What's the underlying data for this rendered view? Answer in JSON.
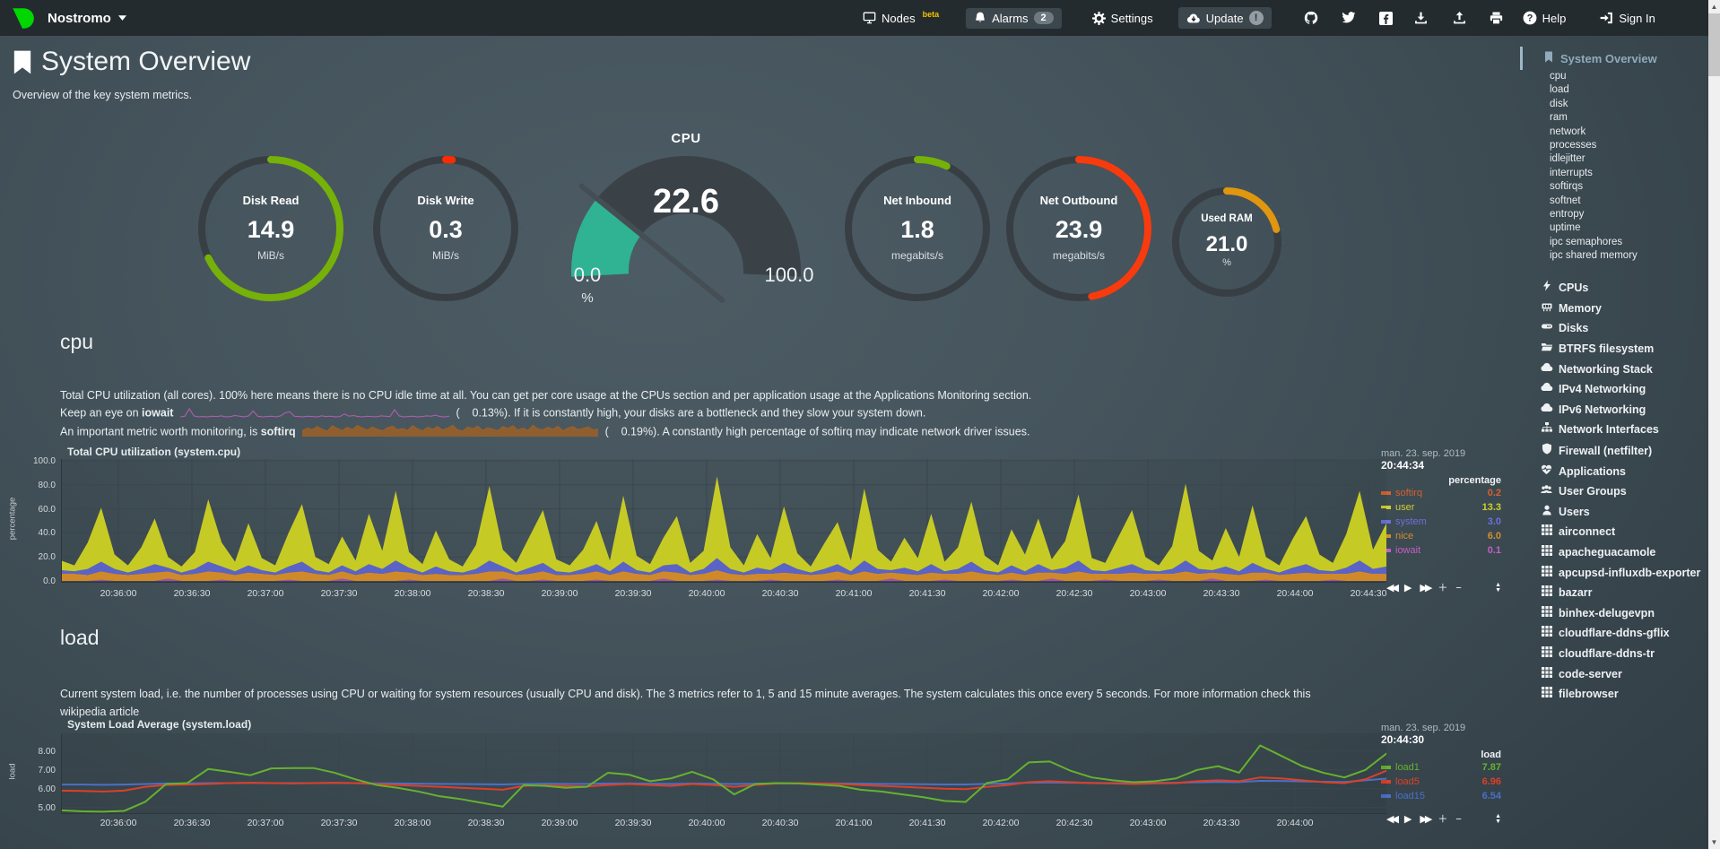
{
  "navbar": {
    "brand": "Nostromo",
    "nodes_label": "Nodes",
    "nodes_beta": "beta",
    "alarms_label": "Alarms",
    "alarms_count": "2",
    "settings_label": "Settings",
    "update_label": "Update",
    "update_badge": "!",
    "help_label": "Help",
    "signin_label": "Sign In",
    "icon_buttons": [
      "github",
      "twitter",
      "facebook",
      "download",
      "upload",
      "print"
    ]
  },
  "header": {
    "title": "System Overview",
    "subtitle": "Overview of the key system metrics."
  },
  "gauges": [
    {
      "label": "Disk Read",
      "value": "14.9",
      "unit": "MiB/s",
      "pct": 0.68,
      "color": "#76b10a"
    },
    {
      "label": "Disk Write",
      "value": "0.3",
      "unit": "MiB/s",
      "pct": 0.015,
      "color": "#ff2b00"
    },
    {
      "label": "Net Inbound",
      "value": "1.8",
      "unit": "megabits/s",
      "pct": 0.07,
      "color": "#76b10a"
    },
    {
      "label": "Net Outbound",
      "value": "23.9",
      "unit": "megabits/s",
      "pct": 0.47,
      "color": "#f83b0e"
    },
    {
      "label": "Used RAM",
      "value": "21.0",
      "unit": "%",
      "pct": 0.21,
      "color": "#e0960f"
    }
  ],
  "cpu_gauge": {
    "title": "CPU",
    "value": "22.6",
    "min": "0.0",
    "max": "100.0",
    "unit": "%",
    "pct": 0.226,
    "fill": "#2fb393"
  },
  "cpu_section": {
    "heading": "cpu",
    "desc1": "Total CPU utilization (all cores). 100% here means there is no CPU idle time at all. You can get per core usage at the CPUs section and per application usage at the Applications Monitoring section.",
    "desc2_pre": "Keep an eye on ",
    "desc2_bold": "iowait",
    "desc2_val": "(    0.13%).",
    "desc2_post": " If it is constantly high, your disks are a bottleneck and they slow your system down.",
    "desc3_pre": "An important metric worth monitoring, is ",
    "desc3_bold": "softirq",
    "desc3_val": "(    0.19%).",
    "desc3_post": " A constantly high percentage of softirq may indicate network driver issues.",
    "chart_title": "Total CPU utilization (system.cpu)",
    "date": "man. 23. sep. 2019",
    "time": "20:44:34",
    "unit_label": "percentage"
  },
  "load_section": {
    "heading": "load",
    "desc1": "Current system load, i.e. the number of processes using CPU or waiting for system resources (usually CPU and disk). The 3 metrics refer to 1, 5 and 15 minute averages. The system calculates this once every 5 seconds. For more information check this",
    "desc_link": "wikipedia article",
    "chart_title": "System Load Average (system.load)",
    "date": "man. 23. sep. 2019",
    "time": "20:44:30",
    "unit_label": "load"
  },
  "chart_toolbar": [
    "rewind",
    "play",
    "fast-forward",
    "zoom-in",
    "zoom-out",
    "resize"
  ],
  "sidebar": {
    "active": "System Overview",
    "sub_items": [
      "cpu",
      "load",
      "disk",
      "ram",
      "network",
      "processes",
      "idlejitter",
      "interrupts",
      "softirqs",
      "softnet",
      "entropy",
      "uptime",
      "ipc semaphores",
      "ipc shared memory"
    ],
    "sections": [
      {
        "icon": "bolt",
        "label": "CPUs"
      },
      {
        "icon": "memory",
        "label": "Memory"
      },
      {
        "icon": "disk",
        "label": "Disks"
      },
      {
        "icon": "folder",
        "label": "BTRFS filesystem"
      },
      {
        "icon": "cloud",
        "label": "Networking Stack"
      },
      {
        "icon": "cloud",
        "label": "IPv4 Networking"
      },
      {
        "icon": "cloud",
        "label": "IPv6 Networking"
      },
      {
        "icon": "sitemap",
        "label": "Network Interfaces"
      },
      {
        "icon": "shield",
        "label": "Firewall (netfilter)"
      },
      {
        "icon": "heartbeat",
        "label": "Applications"
      },
      {
        "icon": "users",
        "label": "User Groups"
      },
      {
        "icon": "user",
        "label": "Users"
      },
      {
        "icon": "grid",
        "label": "airconnect"
      },
      {
        "icon": "grid",
        "label": "apacheguacamole"
      },
      {
        "icon": "grid",
        "label": "apcupsd-influxdb-exporter"
      },
      {
        "icon": "grid",
        "label": "bazarr"
      },
      {
        "icon": "grid",
        "label": "binhex-delugevpn"
      },
      {
        "icon": "grid",
        "label": "cloudflare-ddns-gflix"
      },
      {
        "icon": "grid",
        "label": "cloudflare-ddns-tr"
      },
      {
        "icon": "grid",
        "label": "code-server"
      },
      {
        "icon": "grid",
        "label": "filebrowser"
      }
    ]
  },
  "chart_data": [
    {
      "id": "cpu",
      "type": "area",
      "title": "Total CPU utilization (system.cpu)",
      "ylabel": "percentage",
      "ylim": [
        0,
        100
      ],
      "ytick_labels": [
        "100.0",
        "80.0",
        "60.0",
        "40.0",
        "20.0",
        "0.0"
      ],
      "ytick_values": [
        100,
        80,
        60,
        40,
        20,
        0
      ],
      "x_labels": [
        "20:36:00",
        "20:36:30",
        "20:37:00",
        "20:37:30",
        "20:38:00",
        "20:38:30",
        "20:39:00",
        "20:39:30",
        "20:40:00",
        "20:40:30",
        "20:41:00",
        "20:41:30",
        "20:42:00",
        "20:42:30",
        "20:43:00",
        "20:43:30",
        "20:44:00",
        "20:44:30"
      ],
      "series": [
        {
          "name": "iowait",
          "color": "#a24fb4",
          "values": [
            0,
            0,
            0,
            1,
            0,
            0,
            0,
            0,
            2,
            0,
            0,
            0,
            1,
            0,
            0,
            0,
            0,
            1,
            0,
            0,
            0,
            2,
            0,
            0,
            0,
            0,
            1,
            0,
            0,
            0,
            0,
            0,
            0,
            2,
            0,
            0,
            1,
            0,
            0,
            0,
            1,
            0,
            0,
            0,
            0,
            2,
            0,
            0,
            0,
            1,
            0,
            0,
            0,
            1,
            0,
            0,
            0,
            0,
            1,
            0,
            0,
            0,
            2,
            0,
            0,
            0,
            1,
            0,
            0,
            0,
            0,
            1,
            0,
            0,
            2,
            0,
            0,
            0,
            1,
            0,
            0,
            0,
            1,
            0,
            0,
            0,
            2,
            0,
            0,
            0,
            1,
            0,
            0,
            0,
            0,
            1,
            0,
            0,
            0,
            0
          ]
        },
        {
          "name": "nice",
          "color": "#d0892a",
          "values": [
            6,
            6,
            5,
            7,
            6,
            5,
            6,
            7,
            6,
            5,
            6,
            8,
            6,
            5,
            7,
            6,
            5,
            6,
            8,
            6,
            5,
            6,
            5,
            7,
            6,
            8,
            6,
            5,
            6,
            5,
            5,
            6,
            8,
            6,
            5,
            6,
            7,
            5,
            5,
            6,
            7,
            5,
            8,
            6,
            5,
            6,
            7,
            5,
            6,
            8,
            6,
            5,
            6,
            5,
            7,
            6,
            5,
            6,
            7,
            5,
            8,
            6,
            5,
            6,
            5,
            7,
            5,
            6,
            8,
            6,
            5,
            6,
            5,
            7,
            5,
            6,
            8,
            6,
            5,
            6,
            7,
            6,
            5,
            6,
            8,
            6,
            5,
            6,
            5,
            7,
            6,
            5,
            6,
            7,
            6,
            5,
            6,
            8,
            6,
            6
          ]
        },
        {
          "name": "system",
          "color": "#5a63c8",
          "values": [
            3,
            2,
            5,
            8,
            4,
            2,
            4,
            7,
            3,
            2,
            4,
            8,
            5,
            3,
            6,
            3,
            2,
            5,
            8,
            3,
            2,
            5,
            3,
            7,
            4,
            9,
            4,
            2,
            6,
            3,
            2,
            4,
            9,
            4,
            2,
            5,
            7,
            3,
            2,
            4,
            6,
            3,
            8,
            3,
            2,
            5,
            7,
            2,
            4,
            10,
            4,
            2,
            5,
            3,
            8,
            4,
            2,
            4,
            6,
            3,
            9,
            4,
            2,
            5,
            3,
            7,
            2,
            4,
            8,
            3,
            2,
            6,
            3,
            7,
            2,
            5,
            9,
            3,
            2,
            5,
            7,
            3,
            2,
            4,
            9,
            4,
            2,
            6,
            3,
            8,
            3,
            2,
            5,
            7,
            3,
            2,
            5,
            9,
            4,
            6
          ]
        },
        {
          "name": "user",
          "color": "#c6ca25",
          "values": [
            8,
            5,
            22,
            45,
            12,
            6,
            18,
            38,
            9,
            5,
            14,
            52,
            20,
            8,
            35,
            10,
            6,
            28,
            48,
            11,
            7,
            24,
            9,
            42,
            15,
            58,
            13,
            7,
            30,
            10,
            5,
            20,
            62,
            14,
            8,
            26,
            44,
            10,
            6,
            16,
            36,
            9,
            55,
            12,
            7,
            23,
            40,
            8,
            15,
            68,
            18,
            6,
            28,
            10,
            47,
            13,
            5,
            21,
            35,
            9,
            60,
            16,
            7,
            25,
            11,
            42,
            8,
            18,
            50,
            12,
            6,
            30,
            14,
            38,
            9,
            22,
            55,
            10,
            7,
            26,
            45,
            11,
            5,
            19,
            64,
            15,
            8,
            32,
            12,
            48,
            10,
            6,
            24,
            40,
            13,
            7,
            28,
            58,
            16,
            36
          ]
        }
      ],
      "legend": [
        {
          "name": "softirq",
          "value": "0.2",
          "color": "#d4622f"
        },
        {
          "name": "user",
          "value": "13.3",
          "color": "#ccd030"
        },
        {
          "name": "system",
          "value": "3.0",
          "color": "#6b71dd"
        },
        {
          "name": "nice",
          "value": "6.0",
          "color": "#d28f2f"
        },
        {
          "name": "iowait",
          "value": "0.1",
          "color": "#c45fc4"
        }
      ]
    },
    {
      "id": "load",
      "type": "line",
      "title": "System Load Average (system.load)",
      "ylabel": "load",
      "ylim": [
        4.75,
        8.85
      ],
      "ytick_labels": [
        "8.00",
        "7.00",
        "6.00",
        "5.00"
      ],
      "ytick_values": [
        8,
        7,
        6,
        5
      ],
      "x_labels": [
        "20:36:00",
        "20:36:30",
        "20:37:00",
        "20:37:30",
        "20:38:00",
        "20:38:30",
        "20:39:00",
        "20:39:30",
        "20:40:00",
        "20:40:30",
        "20:41:00",
        "20:41:30",
        "20:42:00",
        "20:42:30",
        "20:43:00",
        "20:43:30",
        "20:44:00"
      ],
      "series": [
        {
          "name": "load1",
          "color": "#65b22e",
          "values": [
            4.85,
            4.8,
            4.78,
            4.82,
            5.3,
            6.25,
            6.3,
            7.05,
            6.9,
            6.72,
            7.08,
            7.1,
            7.1,
            6.85,
            6.5,
            6.2,
            6.05,
            5.85,
            5.6,
            5.45,
            5.25,
            5.05,
            6.2,
            6.15,
            6.05,
            6.1,
            6.85,
            6.75,
            6.4,
            6.55,
            6.9,
            6.5,
            5.7,
            6.25,
            6.3,
            6.28,
            6.22,
            6.15,
            5.95,
            5.85,
            5.7,
            5.55,
            5.35,
            5.3,
            6.3,
            6.5,
            7.4,
            7.45,
            6.95,
            6.6,
            6.45,
            6.35,
            6.4,
            6.55,
            7.0,
            7.2,
            6.85,
            8.3,
            7.75,
            7.2,
            6.85,
            6.6,
            7.0,
            7.87
          ]
        },
        {
          "name": "load5",
          "color": "#dd4026",
          "values": [
            5.9,
            5.88,
            5.85,
            5.9,
            6.1,
            6.2,
            6.22,
            6.25,
            6.3,
            6.32,
            6.3,
            6.28,
            6.3,
            6.32,
            6.3,
            6.25,
            6.2,
            6.15,
            6.1,
            6.05,
            6.0,
            5.95,
            6.15,
            6.18,
            6.15,
            6.12,
            6.2,
            6.25,
            6.2,
            6.15,
            6.25,
            6.2,
            6.1,
            6.2,
            6.28,
            6.3,
            6.28,
            6.25,
            6.2,
            6.15,
            6.1,
            6.05,
            6.0,
            5.98,
            6.1,
            6.2,
            6.35,
            6.4,
            6.35,
            6.3,
            6.28,
            6.25,
            6.28,
            6.3,
            6.4,
            6.45,
            6.4,
            6.6,
            6.55,
            6.45,
            6.35,
            6.3,
            6.5,
            6.96
          ]
        },
        {
          "name": "load15",
          "color": "#4a70c8",
          "values": [
            6.22,
            6.22,
            6.21,
            6.22,
            6.25,
            6.28,
            6.28,
            6.3,
            6.3,
            6.31,
            6.3,
            6.3,
            6.3,
            6.31,
            6.3,
            6.29,
            6.28,
            6.27,
            6.26,
            6.25,
            6.24,
            6.23,
            6.26,
            6.27,
            6.26,
            6.26,
            6.28,
            6.28,
            6.27,
            6.26,
            6.28,
            6.27,
            6.25,
            6.27,
            6.28,
            6.29,
            6.28,
            6.28,
            6.27,
            6.26,
            6.25,
            6.24,
            6.23,
            6.23,
            6.26,
            6.28,
            6.32,
            6.33,
            6.32,
            6.31,
            6.3,
            6.3,
            6.31,
            6.32,
            6.34,
            6.36,
            6.35,
            6.42,
            6.41,
            6.39,
            6.37,
            6.36,
            6.45,
            6.54
          ]
        }
      ],
      "legend": [
        {
          "name": "load1",
          "value": "7.87",
          "color": "#65b22e"
        },
        {
          "name": "load5",
          "value": "6.96",
          "color": "#dd4026"
        },
        {
          "name": "load15",
          "value": "6.54",
          "color": "#4a70c8"
        }
      ]
    },
    {
      "id": "iowait-spark",
      "type": "line",
      "color": "#b75cb7",
      "values": [
        0,
        0.2,
        2.5,
        0.3,
        0,
        0.1,
        0,
        0.2,
        0.1,
        0.3,
        0,
        0.1,
        0.4,
        0.2,
        0,
        0.3,
        1.8,
        0.2,
        0,
        0.1,
        0.2,
        0,
        0.3,
        1.2,
        1.6,
        0.2,
        0.1,
        0,
        0.2,
        0.1,
        0,
        0.3,
        0.1,
        0.2,
        0,
        0.1,
        0.9,
        0.2,
        0.4,
        0.1,
        0,
        0.2,
        0.1,
        0,
        0.3,
        0.2,
        0.1,
        2.2,
        0.3,
        0,
        0.1,
        0.2,
        0,
        0.1,
        0.3,
        0.2,
        0.5,
        0.1,
        0,
        0.2
      ]
    },
    {
      "id": "softirq-spark",
      "type": "area",
      "color": "#9c6028",
      "values": [
        1.5,
        2.2,
        1.8,
        2.6,
        1.9,
        1.4,
        2.8,
        2.1,
        1.6,
        2.4,
        1.8,
        2.9,
        2.2,
        1.7,
        2.5,
        1.9,
        1.5,
        2.3,
        2.7,
        1.8,
        2.1,
        1.6,
        2.8,
        2.0,
        1.5,
        2.4,
        1.9,
        2.6,
        1.7,
        2.2,
        2.9,
        1.8,
        1.4,
        2.5,
        2.0,
        2.7,
        1.6,
        2.3,
        1.9,
        1.5,
        2.6,
        2.1,
        2.8,
        1.7,
        2.2,
        1.6,
        2.9,
        2.0,
        1.8,
        2.4,
        1.9,
        2.7,
        1.5,
        2.2,
        2.6,
        1.8,
        2.1,
        2.5,
        1.7,
        2.0
      ]
    }
  ]
}
